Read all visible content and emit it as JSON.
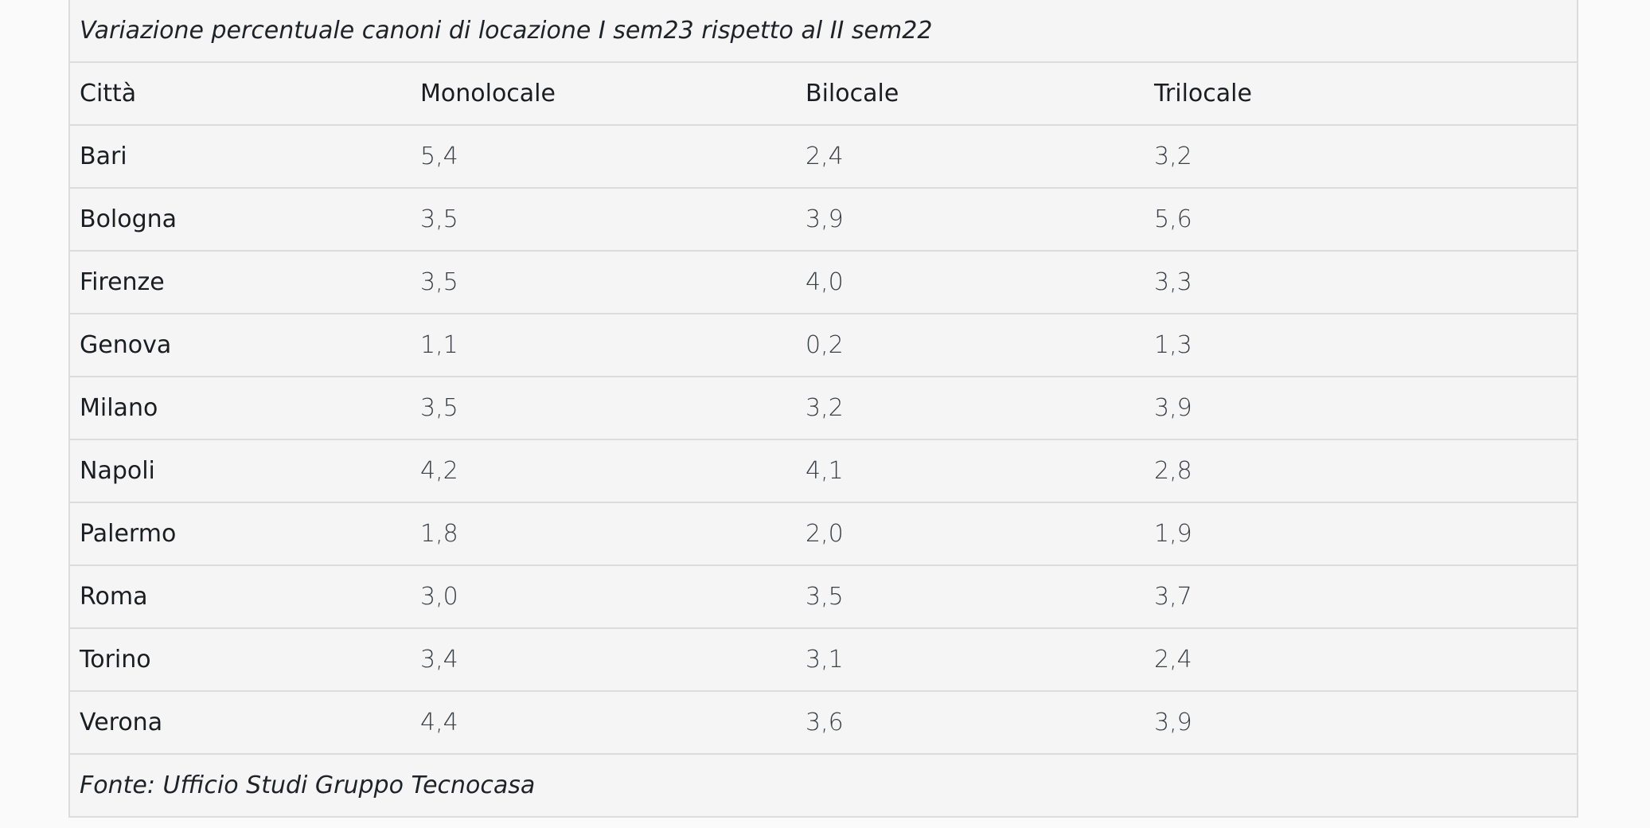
{
  "table": {
    "caption": "Variazione percentuale canoni di locazione I sem23 rispetto al II sem22",
    "headers": [
      "Città",
      "Monolocale",
      "Bilocale",
      "Trilocale"
    ],
    "rows": [
      {
        "city": "Bari",
        "values": [
          "5,4",
          "2,4",
          "3,2"
        ]
      },
      {
        "city": "Bologna",
        "values": [
          "3,5",
          "3,9",
          "5,6"
        ]
      },
      {
        "city": "Firenze",
        "values": [
          "3,5",
          "4,0",
          "3,3"
        ]
      },
      {
        "city": "Genova",
        "values": [
          "1,1",
          "0,2",
          "1,3"
        ]
      },
      {
        "city": "Milano",
        "values": [
          "3,5",
          "3,2",
          "3,9"
        ]
      },
      {
        "city": "Napoli",
        "values": [
          "4,2",
          "4,1",
          "2,8"
        ]
      },
      {
        "city": "Palermo",
        "values": [
          "1,8",
          "2,0",
          "1,9"
        ]
      },
      {
        "city": "Roma",
        "values": [
          "3,0",
          "3,5",
          "3,7"
        ]
      },
      {
        "city": "Torino",
        "values": [
          "3,4",
          "3,1",
          "2,4"
        ]
      },
      {
        "city": "Verona",
        "values": [
          "4,4",
          "3,6",
          "3,9"
        ]
      }
    ],
    "source": "Fonte: Ufficio Studi Gruppo Tecnocasa"
  }
}
